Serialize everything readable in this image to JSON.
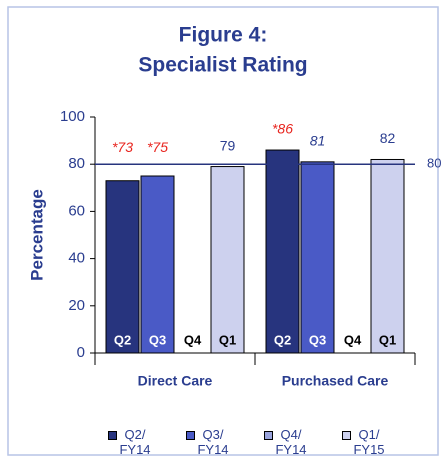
{
  "chart_data": {
    "type": "bar",
    "title": "Figure 4:",
    "subtitle": "Specialist Rating",
    "ylabel": "Percentage",
    "categories": [
      "Direct Care",
      "Purchased Care"
    ],
    "series": [
      {
        "name": "Q2/\nFY14",
        "short_name": "Q2",
        "color": "#27347e",
        "values": [
          73,
          86
        ],
        "value_labels": [
          "*73",
          "*86"
        ],
        "value_label_colors": [
          "#e8251f",
          "#e8251f"
        ],
        "value_label_italic": [
          true,
          true
        ]
      },
      {
        "name": "Q3/\nFY14",
        "short_name": "Q3",
        "color": "#4a5ac6",
        "values": [
          75,
          81
        ],
        "value_labels": [
          "*75",
          "81"
        ],
        "value_label_colors": [
          "#e8251f",
          "#2a3d8f"
        ],
        "value_label_italic": [
          true,
          true
        ]
      },
      {
        "name": "Q4/\nFY14",
        "short_name": "Q4",
        "color": "#9aa4dc",
        "values": [
          null,
          null
        ],
        "value_labels": [
          null,
          null
        ],
        "value_label_colors": [
          null,
          null
        ],
        "value_label_italic": [
          null,
          null
        ]
      },
      {
        "name": "Q1/\nFY15",
        "short_name": "Q1",
        "color": "#cdd1ee",
        "values": [
          79,
          82
        ],
        "value_labels": [
          "79",
          "82"
        ],
        "value_label_colors": [
          "#2a3d8f",
          "#2a3d8f"
        ],
        "value_label_italic": [
          false,
          false
        ]
      }
    ],
    "reference_line": 80,
    "ylim": [
      0,
      100
    ],
    "yticks": [
      0,
      20,
      40,
      60,
      80,
      100
    ],
    "grid": false
  }
}
